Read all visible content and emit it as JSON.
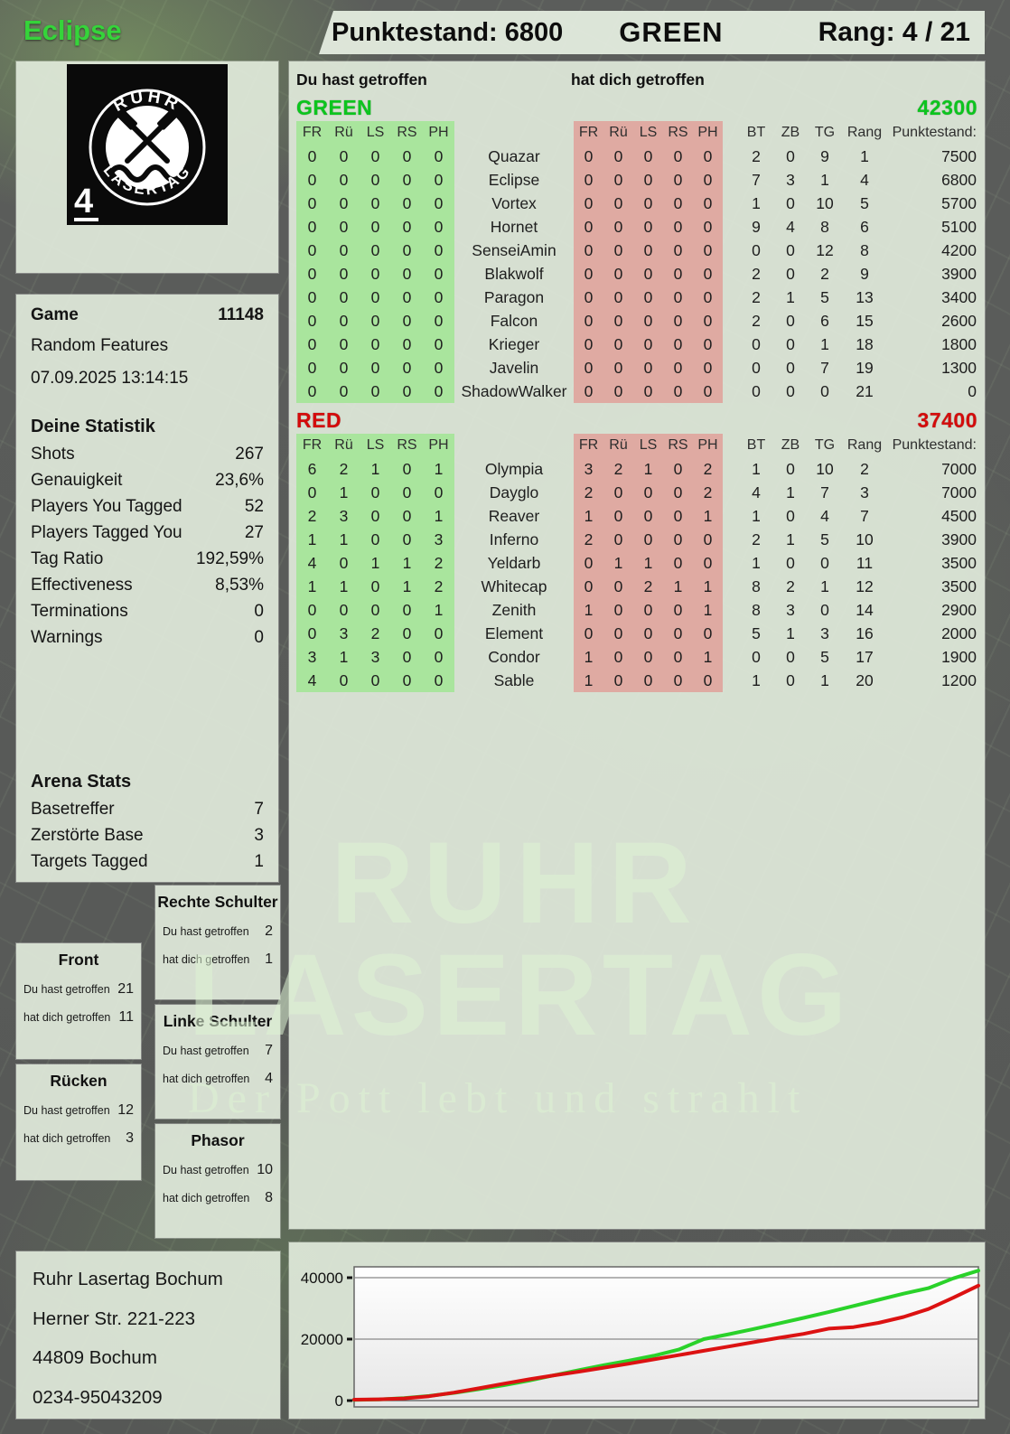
{
  "header": {
    "player": "Eclipse",
    "score_label": "Punktestand: 6800",
    "team": "GREEN",
    "rank_label": "Rang: 4 / 21"
  },
  "logo": {
    "arc_top": "RUHR",
    "arc_bottom": "LASERTAG",
    "rank": "4"
  },
  "game": {
    "label": "Game",
    "number": "11148",
    "mode": "Random Features",
    "datetime": "07.09.2025 13:14:15"
  },
  "stats": {
    "title": "Deine Statistik",
    "rows": [
      [
        "Shots",
        "267"
      ],
      [
        "Genauigkeit",
        "23,6%"
      ],
      [
        "Players You Tagged",
        "52"
      ],
      [
        "Players Tagged You",
        "27"
      ],
      [
        "Tag Ratio",
        "192,59%"
      ],
      [
        "Effectiveness",
        "8,53%"
      ],
      [
        "Terminations",
        "0"
      ],
      [
        "Warnings",
        "0"
      ]
    ]
  },
  "arena": {
    "title": "Arena Stats",
    "rows": [
      [
        "Basetreffer",
        "7"
      ],
      [
        "Zerstörte Base",
        "3"
      ],
      [
        "Targets Tagged",
        "1"
      ]
    ]
  },
  "hit_labels": {
    "you": "Du hast getroffen",
    "them": "hat dich getroffen"
  },
  "hit_boxes": [
    {
      "title": "Rechte Schulter",
      "you": "2",
      "them": "1"
    },
    {
      "title": "Front",
      "you": "21",
      "them": "11"
    },
    {
      "title": "Linke Schulter",
      "you": "7",
      "them": "4"
    },
    {
      "title": "Rücken",
      "you": "12",
      "them": "3"
    },
    {
      "title": "Phasor",
      "you": "10",
      "them": "8"
    }
  ],
  "address": {
    "lines": [
      "Ruhr Lasertag Bochum",
      "Herner Str. 221-223",
      "44809 Bochum",
      "0234-95043209"
    ]
  },
  "main": {
    "col_you": "Du hast getroffen",
    "col_them": "hat dich getroffen",
    "columns": [
      "FR",
      "Rü",
      "LS",
      "RS",
      "PH"
    ],
    "columns2": [
      "BT",
      "ZB",
      "TG",
      "Rang",
      "Punktestand:"
    ],
    "teams": [
      {
        "name": "GREEN",
        "score": "42300",
        "rows": [
          {
            "you": [
              0,
              0,
              0,
              0,
              0
            ],
            "name": "Quazar",
            "them": [
              0,
              0,
              0,
              0,
              0
            ],
            "bt": 2,
            "zb": 0,
            "tg": 9,
            "rang": 1,
            "punkte": 7500
          },
          {
            "you": [
              0,
              0,
              0,
              0,
              0
            ],
            "name": "Eclipse",
            "them": [
              0,
              0,
              0,
              0,
              0
            ],
            "bt": 7,
            "zb": 3,
            "tg": 1,
            "rang": 4,
            "punkte": 6800
          },
          {
            "you": [
              0,
              0,
              0,
              0,
              0
            ],
            "name": "Vortex",
            "them": [
              0,
              0,
              0,
              0,
              0
            ],
            "bt": 1,
            "zb": 0,
            "tg": 10,
            "rang": 5,
            "punkte": 5700
          },
          {
            "you": [
              0,
              0,
              0,
              0,
              0
            ],
            "name": "Hornet",
            "them": [
              0,
              0,
              0,
              0,
              0
            ],
            "bt": 9,
            "zb": 4,
            "tg": 8,
            "rang": 6,
            "punkte": 5100
          },
          {
            "you": [
              0,
              0,
              0,
              0,
              0
            ],
            "name": "SenseiAmin",
            "them": [
              0,
              0,
              0,
              0,
              0
            ],
            "bt": 0,
            "zb": 0,
            "tg": 12,
            "rang": 8,
            "punkte": 4200
          },
          {
            "you": [
              0,
              0,
              0,
              0,
              0
            ],
            "name": "Blakwolf",
            "them": [
              0,
              0,
              0,
              0,
              0
            ],
            "bt": 2,
            "zb": 0,
            "tg": 2,
            "rang": 9,
            "punkte": 3900
          },
          {
            "you": [
              0,
              0,
              0,
              0,
              0
            ],
            "name": "Paragon",
            "them": [
              0,
              0,
              0,
              0,
              0
            ],
            "bt": 2,
            "zb": 1,
            "tg": 5,
            "rang": 13,
            "punkte": 3400
          },
          {
            "you": [
              0,
              0,
              0,
              0,
              0
            ],
            "name": "Falcon",
            "them": [
              0,
              0,
              0,
              0,
              0
            ],
            "bt": 2,
            "zb": 0,
            "tg": 6,
            "rang": 15,
            "punkte": 2600
          },
          {
            "you": [
              0,
              0,
              0,
              0,
              0
            ],
            "name": "Krieger",
            "them": [
              0,
              0,
              0,
              0,
              0
            ],
            "bt": 0,
            "zb": 0,
            "tg": 1,
            "rang": 18,
            "punkte": 1800
          },
          {
            "you": [
              0,
              0,
              0,
              0,
              0
            ],
            "name": "Javelin",
            "them": [
              0,
              0,
              0,
              0,
              0
            ],
            "bt": 0,
            "zb": 0,
            "tg": 7,
            "rang": 19,
            "punkte": 1300
          },
          {
            "you": [
              0,
              0,
              0,
              0,
              0
            ],
            "name": "ShadowWalker",
            "them": [
              0,
              0,
              0,
              0,
              0
            ],
            "bt": 0,
            "zb": 0,
            "tg": 0,
            "rang": 21,
            "punkte": 0
          }
        ]
      },
      {
        "name": "RED",
        "score": "37400",
        "rows": [
          {
            "you": [
              6,
              2,
              1,
              0,
              1
            ],
            "name": "Olympia",
            "them": [
              3,
              2,
              1,
              0,
              2
            ],
            "bt": 1,
            "zb": 0,
            "tg": 10,
            "rang": 2,
            "punkte": 7000
          },
          {
            "you": [
              0,
              1,
              0,
              0,
              0
            ],
            "name": "Dayglo",
            "them": [
              2,
              0,
              0,
              0,
              2
            ],
            "bt": 4,
            "zb": 1,
            "tg": 7,
            "rang": 3,
            "punkte": 7000
          },
          {
            "you": [
              2,
              3,
              0,
              0,
              1
            ],
            "name": "Reaver",
            "them": [
              1,
              0,
              0,
              0,
              1
            ],
            "bt": 1,
            "zb": 0,
            "tg": 4,
            "rang": 7,
            "punkte": 4500
          },
          {
            "you": [
              1,
              1,
              0,
              0,
              3
            ],
            "name": "Inferno",
            "them": [
              2,
              0,
              0,
              0,
              0
            ],
            "bt": 2,
            "zb": 1,
            "tg": 5,
            "rang": 10,
            "punkte": 3900
          },
          {
            "you": [
              4,
              0,
              1,
              1,
              2
            ],
            "name": "Yeldarb",
            "them": [
              0,
              1,
              1,
              0,
              0
            ],
            "bt": 1,
            "zb": 0,
            "tg": 0,
            "rang": 11,
            "punkte": 3500
          },
          {
            "you": [
              1,
              1,
              0,
              1,
              2
            ],
            "name": "Whitecap",
            "them": [
              0,
              0,
              2,
              1,
              1
            ],
            "bt": 8,
            "zb": 2,
            "tg": 1,
            "rang": 12,
            "punkte": 3500
          },
          {
            "you": [
              0,
              0,
              0,
              0,
              1
            ],
            "name": "Zenith",
            "them": [
              1,
              0,
              0,
              0,
              1
            ],
            "bt": 8,
            "zb": 3,
            "tg": 0,
            "rang": 14,
            "punkte": 2900
          },
          {
            "you": [
              0,
              3,
              2,
              0,
              0
            ],
            "name": "Element",
            "them": [
              0,
              0,
              0,
              0,
              0
            ],
            "bt": 5,
            "zb": 1,
            "tg": 3,
            "rang": 16,
            "punkte": 2000
          },
          {
            "you": [
              3,
              1,
              3,
              0,
              0
            ],
            "name": "Condor",
            "them": [
              1,
              0,
              0,
              0,
              1
            ],
            "bt": 0,
            "zb": 0,
            "tg": 5,
            "rang": 17,
            "punkte": 1900
          },
          {
            "you": [
              4,
              0,
              0,
              0,
              0
            ],
            "name": "Sable",
            "them": [
              1,
              0,
              0,
              0,
              0
            ],
            "bt": 1,
            "zb": 0,
            "tg": 1,
            "rang": 20,
            "punkte": 1200
          }
        ]
      }
    ]
  },
  "watermark": {
    "line1": "RUHR",
    "line2": "LASERTAG",
    "line3": "Der Pott lebt und strahlt"
  },
  "colors": {
    "team_green": "#0cc51e",
    "team_red": "#d40b0b",
    "block_green": "#a9e59d",
    "block_red": "#dfaaa2"
  },
  "chart_data": {
    "type": "line",
    "title": "",
    "xlabel": "",
    "ylabel": "",
    "ylim": [
      0,
      45000
    ],
    "yticks": [
      0,
      20000,
      40000
    ],
    "grid": true,
    "legend_position": "none",
    "series": [
      {
        "name": "GREEN",
        "color": "#2ad22a",
        "values": [
          200,
          350,
          800,
          1500,
          2500,
          3700,
          5000,
          6500,
          8200,
          9900,
          11500,
          13000,
          14600,
          16600,
          20000,
          21600,
          23300,
          25100,
          26900,
          28800,
          30800,
          32800,
          34800,
          36600,
          39800,
          42300
        ]
      },
      {
        "name": "RED",
        "color": "#dc1212",
        "values": [
          300,
          400,
          700,
          1400,
          2600,
          4000,
          5500,
          6900,
          8200,
          9400,
          10700,
          12000,
          13400,
          14800,
          16200,
          17600,
          19000,
          20400,
          21700,
          23400,
          23900,
          25300,
          27200,
          29800,
          33500,
          37400
        ]
      }
    ]
  }
}
